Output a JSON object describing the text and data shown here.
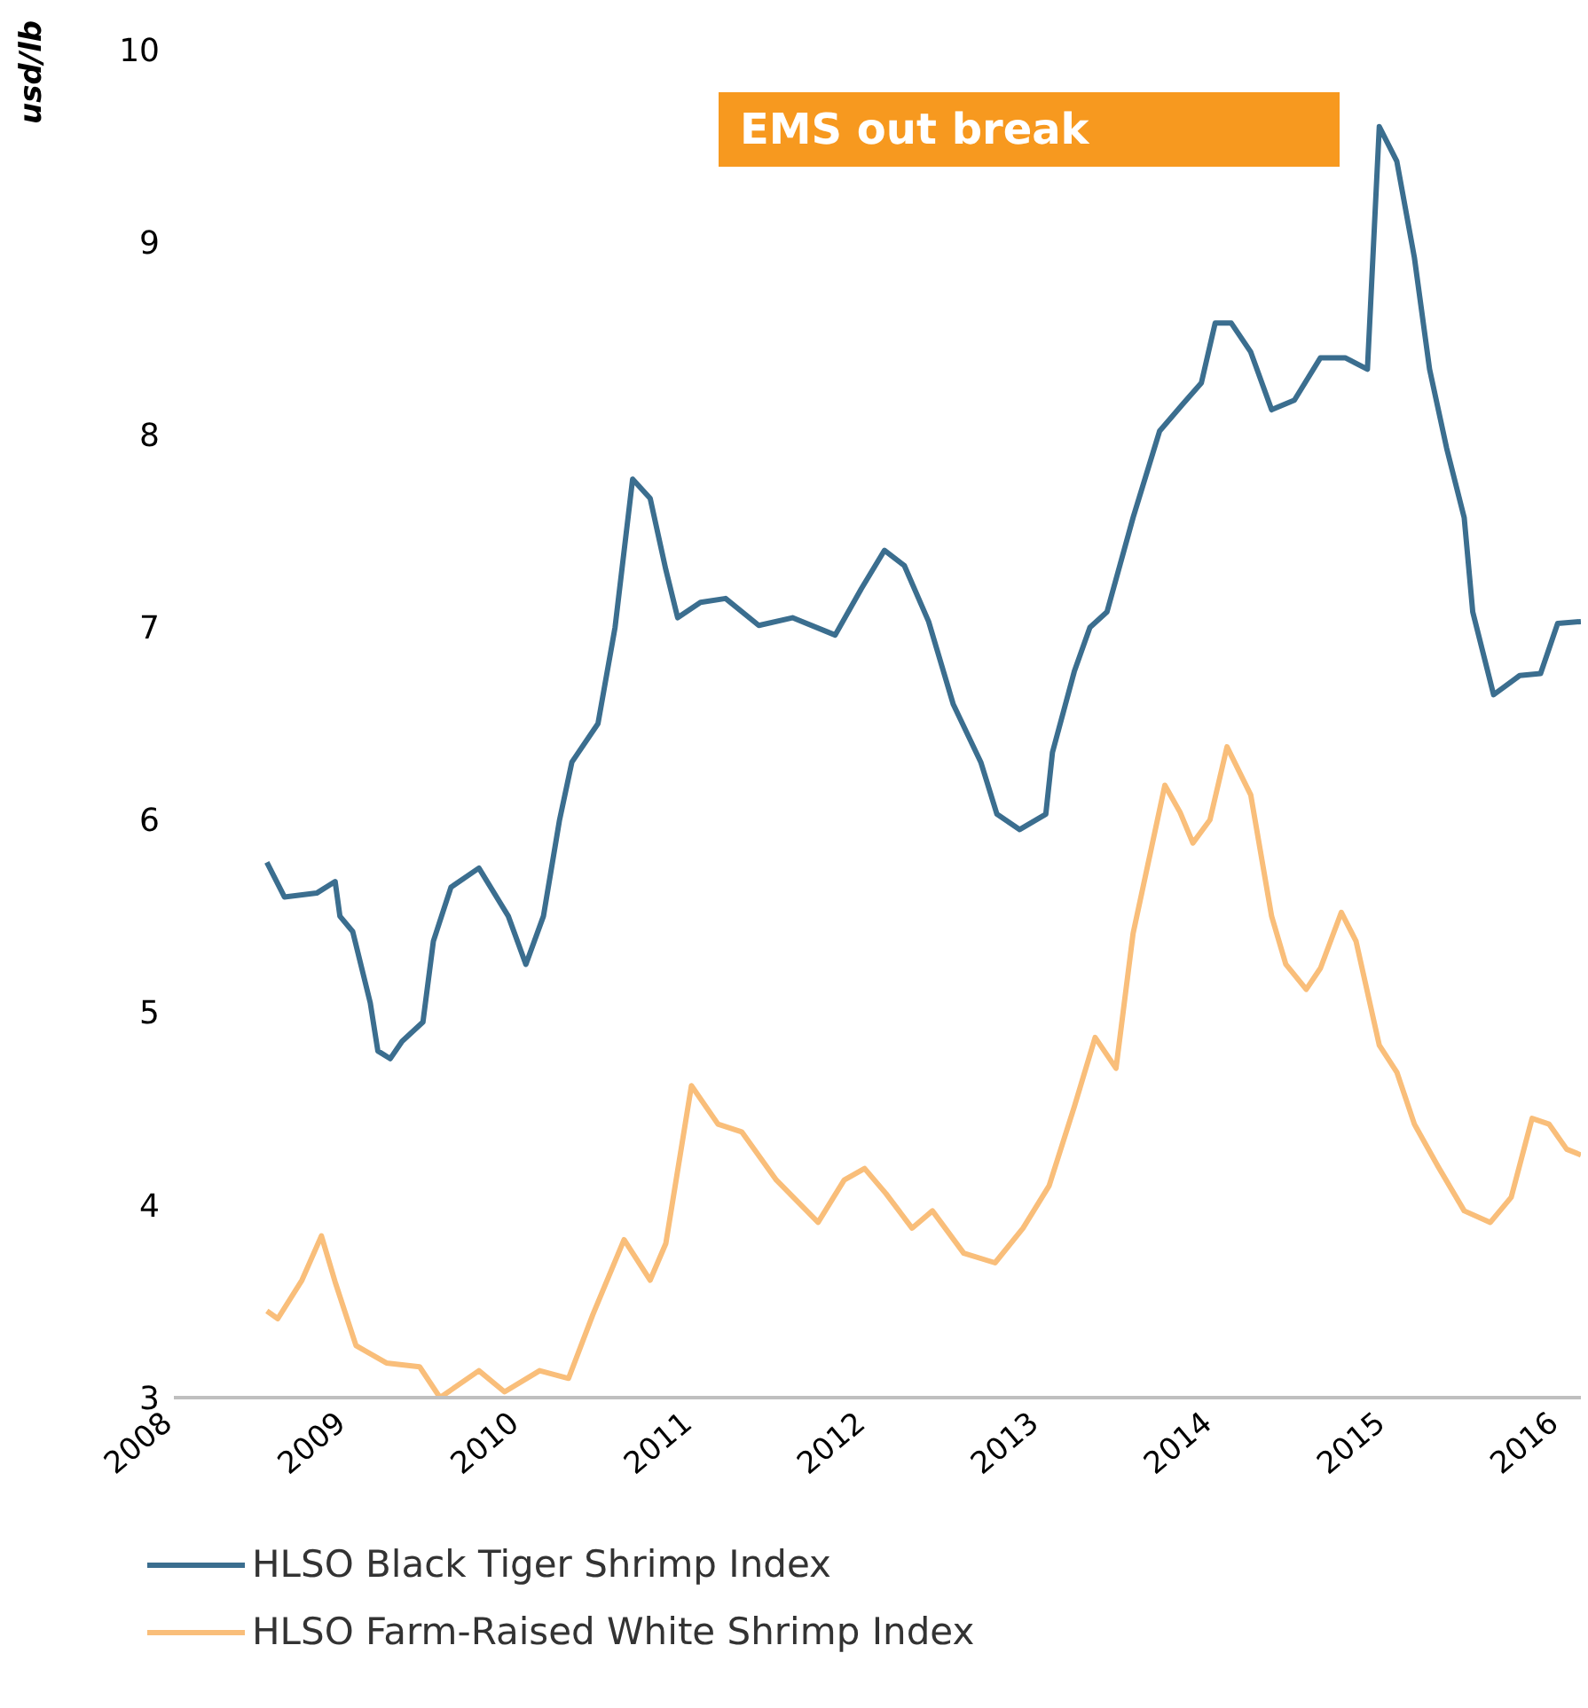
{
  "chart_data": {
    "type": "line",
    "ylabel": "usd/lb",
    "annotations": [
      "EMS out break"
    ],
    "xlim": [
      "2008",
      "2016-02-14"
    ],
    "xticks": [
      "2008",
      "2009",
      "2010",
      "2011",
      "2012",
      "2013",
      "2014",
      "2015",
      "2016"
    ],
    "ylim": [
      3,
      10
    ],
    "yticks": [
      3,
      4,
      5,
      6,
      7,
      8,
      9,
      10
    ],
    "legend": "bottom",
    "marker": "none",
    "line_style": "solid",
    "series": [
      {
        "name": "HLSO Black Tiger Shrimp Index",
        "color": "#3b6e8f",
        "x": [
          "2008-07-15",
          "2008-08-21",
          "2008-10-28",
          "2008-12-06",
          "2008-12-16",
          "2009-01-12",
          "2009-02-18",
          "2009-03-06",
          "2009-04-01",
          "2009-04-26",
          "2009-06-09",
          "2009-07-01",
          "2009-08-07",
          "2009-10-05",
          "2009-12-06",
          "2010-01-12",
          "2010-02-18",
          "2010-03-24",
          "2010-04-19",
          "2010-06-13",
          "2010-07-19",
          "2010-08-25",
          "2010-10-01",
          "2010-11-03",
          "2010-11-28",
          "2011-01-15",
          "2011-03-09",
          "2011-05-18",
          "2011-07-28",
          "2011-10-26",
          "2011-12-20",
          "2012-02-07",
          "2012-03-20",
          "2012-05-10",
          "2012-07-01",
          "2012-08-28",
          "2012-10-01",
          "2012-11-18",
          "2013-01-12",
          "2013-01-26",
          "2013-03-13",
          "2013-04-15",
          "2013-05-21",
          "2013-07-15",
          "2013-09-09",
          "2013-10-28",
          "2013-12-06",
          "2014-01-04",
          "2014-02-07",
          "2014-03-20",
          "2014-05-03",
          "2014-06-20",
          "2014-08-14",
          "2014-10-05",
          "2014-11-21",
          "2014-12-16",
          "2015-01-22",
          "2015-02-28",
          "2015-04-01",
          "2015-05-07",
          "2015-06-13",
          "2015-07-01",
          "2015-08-14",
          "2015-10-08",
          "2015-11-21",
          "2015-12-27",
          "2016-02-14"
        ],
        "values": [
          5.78,
          5.6,
          5.62,
          5.68,
          5.5,
          5.42,
          5.05,
          4.8,
          4.76,
          4.85,
          4.95,
          5.37,
          5.65,
          5.75,
          5.5,
          5.25,
          5.5,
          6.0,
          6.3,
          6.5,
          7.0,
          7.77,
          7.67,
          7.3,
          7.05,
          7.13,
          7.15,
          7.01,
          7.05,
          6.96,
          7.2,
          7.4,
          7.32,
          7.03,
          6.6,
          6.3,
          6.03,
          5.95,
          6.03,
          6.35,
          6.77,
          7.0,
          7.08,
          7.57,
          8.02,
          8.16,
          8.27,
          8.58,
          8.58,
          8.43,
          8.13,
          8.18,
          8.4,
          8.4,
          8.34,
          9.6,
          9.42,
          8.92,
          8.34,
          7.93,
          7.57,
          7.08,
          6.65,
          6.75,
          6.76,
          7.02,
          7.03
        ]
      },
      {
        "name": "HLSO Farm-Raised White Shrimp Index",
        "color": "#f9be7a",
        "x": [
          "2008-07-15",
          "2008-08-07",
          "2008-09-27",
          "2008-11-07",
          "2008-12-06",
          "2009-01-19",
          "2009-03-24",
          "2009-06-02",
          "2009-07-15",
          "2009-10-05",
          "2009-11-28",
          "2010-02-10",
          "2010-04-12",
          "2010-06-02",
          "2010-08-07",
          "2010-10-01",
          "2010-11-03",
          "2010-12-27",
          "2011-02-21",
          "2011-04-12",
          "2011-06-24",
          "2011-09-20",
          "2011-11-14",
          "2011-12-27",
          "2012-02-10",
          "2012-04-05",
          "2012-05-18",
          "2012-07-23",
          "2012-09-27",
          "2012-11-25",
          "2013-01-19",
          "2013-03-13",
          "2013-04-26",
          "2013-06-09",
          "2013-07-15",
          "2013-09-20",
          "2013-10-22",
          "2013-11-18",
          "2013-12-24",
          "2014-01-29",
          "2014-03-20",
          "2014-05-03",
          "2014-06-02",
          "2014-07-15",
          "2014-08-14",
          "2014-09-27",
          "2014-10-28",
          "2014-12-16",
          "2015-01-22",
          "2015-02-28",
          "2015-04-19",
          "2015-06-13",
          "2015-08-07",
          "2015-09-20",
          "2015-11-03",
          "2015-12-09",
          "2016-01-15",
          "2016-02-14"
        ],
        "values": [
          3.45,
          3.41,
          3.61,
          3.84,
          3.6,
          3.27,
          3.18,
          3.16,
          3.0,
          3.14,
          3.03,
          3.14,
          3.1,
          3.43,
          3.82,
          3.61,
          3.8,
          4.62,
          4.42,
          4.38,
          4.13,
          3.91,
          4.13,
          4.19,
          4.06,
          3.88,
          3.97,
          3.75,
          3.7,
          3.88,
          4.1,
          4.51,
          4.87,
          4.71,
          5.41,
          6.18,
          6.04,
          5.88,
          6.0,
          6.38,
          6.13,
          5.5,
          5.25,
          5.12,
          5.23,
          5.52,
          5.37,
          4.83,
          4.69,
          4.42,
          4.2,
          3.97,
          3.91,
          4.04,
          4.45,
          4.42,
          4.29,
          4.26
        ]
      }
    ]
  }
}
